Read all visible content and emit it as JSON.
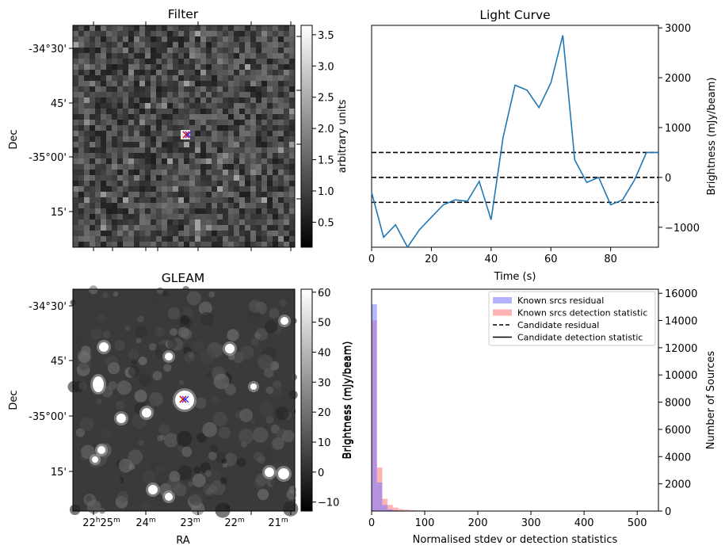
{
  "panels": {
    "filter": {
      "title": "Filter",
      "ylabel": "Dec",
      "dec_ticks": [
        "-34°30'",
        "45'",
        "-35°00'",
        "15'"
      ],
      "colorbar": {
        "label": "arbitrary units",
        "ticks": [
          "0.5",
          "1.0",
          "1.5",
          "2.0",
          "2.5",
          "3.0",
          "3.5"
        ],
        "vmin": 0.1,
        "vmax": 3.65
      }
    },
    "gleam": {
      "title": "GLEAM",
      "ylabel": "Dec",
      "xlabel": "RA",
      "dec_ticks": [
        "-34°30'",
        "45'",
        "-35°00'",
        "15'"
      ],
      "ra_ticks": [
        {
          "h": "22",
          "m": "25"
        },
        {
          "h": "",
          "m": "24"
        },
        {
          "h": "",
          "m": "23"
        },
        {
          "h": "",
          "m": "22"
        },
        {
          "h": "",
          "m": "21"
        }
      ],
      "ra_unit_h": "h",
      "ra_unit_m": "m",
      "colorbar": {
        "label": "Brightness (mJy/beam)",
        "ticks": [
          "−10",
          "0",
          "10",
          "20",
          "30",
          "40",
          "50",
          "60"
        ],
        "vmin": -13,
        "vmax": 61
      }
    }
  },
  "chart_data": [
    {
      "type": "line",
      "title": "Light Curve",
      "xlabel": "Time (s)",
      "ylabel": "Brightness (mJy/beam)",
      "xlim": [
        0,
        96
      ],
      "ylim": [
        -1400,
        3050
      ],
      "xticks": [
        0,
        20,
        40,
        60,
        80
      ],
      "yticks": [
        -1000,
        0,
        1000,
        2000,
        3000
      ],
      "series": [
        {
          "x": [
            0,
            4,
            8,
            12,
            16,
            20,
            24,
            28,
            32,
            36,
            40,
            44,
            48,
            52,
            56,
            60,
            64,
            68,
            72,
            76,
            80,
            84,
            88,
            92,
            96
          ],
          "y": [
            -300,
            -1200,
            -950,
            -1400,
            -1050,
            -800,
            -550,
            -450,
            -480,
            -80,
            -850,
            800,
            1850,
            1750,
            1400,
            1900,
            2850,
            350,
            -100,
            0,
            -550,
            -450,
            -50,
            500,
            500
          ]
        }
      ],
      "hlines": [
        500,
        0,
        -500
      ]
    },
    {
      "type": "bar",
      "xlabel": "Normalised stdev or detection statistics",
      "ylabel_left": "Brightness (mJy/beam)",
      "ylabel_right": "Number of Sources",
      "xlim": [
        0,
        540
      ],
      "ylim": [
        0,
        16300
      ],
      "xticks": [
        0,
        100,
        200,
        300,
        400,
        500
      ],
      "yticks": [
        0,
        2000,
        4000,
        6000,
        8000,
        10000,
        12000,
        14000,
        16000
      ],
      "bin_width": 10,
      "series": [
        {
          "name": "Known srcs residual",
          "color": "#7777ff",
          "values": [
            15200,
            2100,
            450,
            120,
            50,
            20,
            10,
            5
          ]
        },
        {
          "name": "Known srcs detection statistic",
          "color": "#ff7777",
          "values": [
            14000,
            3200,
            900,
            450,
            250,
            150,
            100,
            70,
            50,
            40,
            30,
            25,
            20,
            18,
            15,
            12,
            10,
            10,
            8,
            8,
            7,
            6,
            6,
            5,
            5,
            5,
            4,
            4,
            4,
            3,
            3,
            3,
            3,
            2,
            2,
            2,
            2,
            2,
            2,
            2,
            2,
            1,
            1,
            1,
            1,
            1,
            1,
            1,
            1,
            1,
            1,
            1,
            1,
            1
          ]
        }
      ],
      "legend": {
        "placement": "top-right",
        "entries": [
          {
            "label": "Known srcs residual",
            "style": "patch",
            "color": "#b3b3ff"
          },
          {
            "label": "Known srcs detection statistic",
            "style": "patch",
            "color": "#ffb3b3"
          },
          {
            "label": "Candidate residual",
            "style": "dashed",
            "color": "#000000"
          },
          {
            "label": "Candidate detection statistic",
            "style": "solid",
            "color": "#000000"
          }
        ]
      }
    }
  ]
}
